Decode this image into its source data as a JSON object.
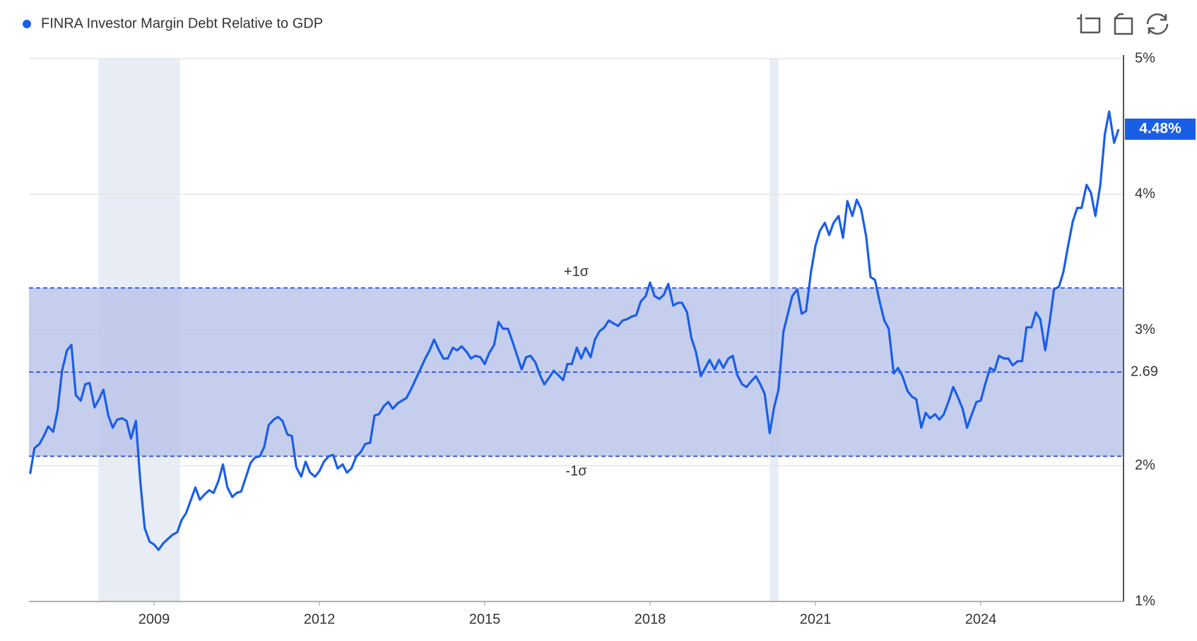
{
  "chart_data": {
    "type": "line",
    "x": [
      2006.75,
      2006.83,
      2006.92,
      2007.0,
      2007.08,
      2007.17,
      2007.25,
      2007.33,
      2007.42,
      2007.5,
      2007.58,
      2007.67,
      2007.75,
      2007.83,
      2007.92,
      2008.0,
      2008.08,
      2008.17,
      2008.25,
      2008.33,
      2008.42,
      2008.5,
      2008.58,
      2008.67,
      2008.75,
      2008.83,
      2008.92,
      2009.0,
      2009.08,
      2009.17,
      2009.25,
      2009.33,
      2009.42,
      2009.5,
      2009.58,
      2009.67,
      2009.75,
      2009.83,
      2009.92,
      2010.0,
      2010.08,
      2010.17,
      2010.25,
      2010.33,
      2010.42,
      2010.5,
      2010.58,
      2010.67,
      2010.75,
      2010.83,
      2010.92,
      2011.0,
      2011.08,
      2011.17,
      2011.25,
      2011.33,
      2011.42,
      2011.5,
      2011.58,
      2011.67,
      2011.75,
      2011.83,
      2011.92,
      2012.0,
      2012.08,
      2012.17,
      2012.25,
      2012.33,
      2012.42,
      2012.5,
      2012.58,
      2012.67,
      2012.75,
      2012.83,
      2012.92,
      2013.0,
      2013.08,
      2013.17,
      2013.25,
      2013.33,
      2013.42,
      2013.5,
      2013.58,
      2013.67,
      2013.75,
      2013.83,
      2013.92,
      2014.0,
      2014.08,
      2014.17,
      2014.25,
      2014.33,
      2014.42,
      2014.5,
      2014.58,
      2014.67,
      2014.75,
      2014.83,
      2014.92,
      2015.0,
      2015.08,
      2015.17,
      2015.25,
      2015.33,
      2015.42,
      2015.5,
      2015.58,
      2015.67,
      2015.75,
      2015.83,
      2015.92,
      2016.0,
      2016.08,
      2016.17,
      2016.25,
      2016.33,
      2016.42,
      2016.5,
      2016.58,
      2016.67,
      2016.75,
      2016.83,
      2016.92,
      2017.0,
      2017.08,
      2017.17,
      2017.25,
      2017.33,
      2017.42,
      2017.5,
      2017.58,
      2017.67,
      2017.75,
      2017.83,
      2017.92,
      2018.0,
      2018.08,
      2018.17,
      2018.25,
      2018.33,
      2018.42,
      2018.5,
      2018.58,
      2018.67,
      2018.75,
      2018.83,
      2018.92,
      2019.0,
      2019.08,
      2019.17,
      2019.25,
      2019.33,
      2019.42,
      2019.5,
      2019.58,
      2019.67,
      2019.75,
      2019.83,
      2019.92,
      2020.0,
      2020.08,
      2020.17,
      2020.25,
      2020.33,
      2020.42,
      2020.5,
      2020.58,
      2020.67,
      2020.75,
      2020.83,
      2020.92,
      2021.0,
      2021.08,
      2021.17,
      2021.25,
      2021.33,
      2021.42,
      2021.5,
      2021.58,
      2021.67,
      2021.75,
      2021.83,
      2021.92,
      2022.0,
      2022.08,
      2022.17,
      2022.25,
      2022.33,
      2022.42,
      2022.5,
      2022.58,
      2022.67,
      2022.75,
      2022.83,
      2022.92,
      2023.0,
      2023.08,
      2023.17,
      2023.25,
      2023.33,
      2023.42,
      2023.5,
      2023.58,
      2023.67,
      2023.75,
      2023.83,
      2023.92,
      2024.0,
      2024.08,
      2024.17,
      2024.25,
      2024.33,
      2024.42,
      2024.5,
      2024.58,
      2024.67,
      2024.75,
      2024.83,
      2024.92,
      2025.0,
      2025.08,
      2025.17,
      2025.25,
      2025.33,
      2025.42,
      2025.5,
      2025.58,
      2025.67,
      2025.75,
      2025.83,
      2025.92,
      2026.0,
      2026.08,
      2026.17,
      2026.25,
      2026.33,
      2026.42,
      2026.5
    ],
    "series": [
      {
        "name": "FINRA Investor Margin Debt Relative to GDP",
        "color": "#1a5ee8",
        "values": [
          1.94,
          2.13,
          2.16,
          2.22,
          2.29,
          2.25,
          2.41,
          2.7,
          2.85,
          2.89,
          2.52,
          2.48,
          2.6,
          2.61,
          2.43,
          2.49,
          2.56,
          2.37,
          2.28,
          2.34,
          2.35,
          2.33,
          2.2,
          2.33,
          1.88,
          1.54,
          1.44,
          1.42,
          1.38,
          1.43,
          1.46,
          1.49,
          1.51,
          1.6,
          1.65,
          1.75,
          1.84,
          1.75,
          1.79,
          1.82,
          1.8,
          1.89,
          2.01,
          1.84,
          1.77,
          1.8,
          1.81,
          1.92,
          2.02,
          2.06,
          2.07,
          2.14,
          2.3,
          2.34,
          2.36,
          2.33,
          2.23,
          2.22,
          1.99,
          1.92,
          2.03,
          1.95,
          1.92,
          1.96,
          2.03,
          2.07,
          2.08,
          1.98,
          2.01,
          1.95,
          1.98,
          2.07,
          2.1,
          2.16,
          2.17,
          2.37,
          2.38,
          2.44,
          2.47,
          2.42,
          2.46,
          2.48,
          2.5,
          2.57,
          2.64,
          2.71,
          2.79,
          2.85,
          2.93,
          2.85,
          2.79,
          2.79,
          2.87,
          2.85,
          2.88,
          2.84,
          2.79,
          2.81,
          2.8,
          2.75,
          2.83,
          2.89,
          3.06,
          3.01,
          3.01,
          2.92,
          2.82,
          2.71,
          2.8,
          2.81,
          2.76,
          2.67,
          2.6,
          2.65,
          2.7,
          2.67,
          2.63,
          2.75,
          2.75,
          2.87,
          2.79,
          2.87,
          2.8,
          2.93,
          2.99,
          3.02,
          3.07,
          3.05,
          3.03,
          3.07,
          3.08,
          3.1,
          3.11,
          3.21,
          3.25,
          3.35,
          3.25,
          3.23,
          3.26,
          3.34,
          3.18,
          3.2,
          3.2,
          3.13,
          2.94,
          2.84,
          2.66,
          2.72,
          2.78,
          2.71,
          2.78,
          2.72,
          2.79,
          2.81,
          2.67,
          2.6,
          2.58,
          2.62,
          2.66,
          2.6,
          2.53,
          2.24,
          2.43,
          2.56,
          2.99,
          3.12,
          3.25,
          3.3,
          3.12,
          3.14,
          3.43,
          3.62,
          3.73,
          3.79,
          3.7,
          3.79,
          3.84,
          3.68,
          3.95,
          3.84,
          3.96,
          3.89,
          3.69,
          3.39,
          3.37,
          3.2,
          3.07,
          3.01,
          2.68,
          2.72,
          2.66,
          2.55,
          2.51,
          2.49,
          2.28,
          2.39,
          2.35,
          2.38,
          2.34,
          2.38,
          2.48,
          2.58,
          2.51,
          2.42,
          2.28,
          2.37,
          2.47,
          2.48,
          2.6,
          2.72,
          2.7,
          2.81,
          2.79,
          2.79,
          2.74,
          2.77,
          2.77,
          3.02,
          3.02,
          3.13,
          3.08,
          2.85,
          3.06,
          3.3,
          3.32,
          3.43,
          3.61,
          3.8,
          3.9,
          3.9,
          4.07,
          4.01,
          3.84,
          4.07,
          4.44,
          4.61,
          4.38,
          4.48
        ]
      }
    ],
    "last_label": "4.48%",
    "xlim": [
      2006.73,
      2026.59
    ],
    "xticks": [
      2009,
      2012,
      2015,
      2018,
      2021,
      2024
    ],
    "ylim": [
      1,
      5
    ],
    "yticks": [
      {
        "value": 1,
        "label": "1%"
      },
      {
        "value": 2,
        "label": "2%"
      },
      {
        "value": 3,
        "label": "3%"
      },
      {
        "value": 4,
        "label": "4%"
      },
      {
        "value": 5,
        "label": "5%"
      }
    ],
    "grid": true,
    "band": {
      "upper": 3.31,
      "upper_label": "+1σ",
      "lower": 2.07,
      "lower_label": "-1σ",
      "mean": {
        "value": 2.69,
        "label": "2.69"
      },
      "color": "#bcc6ea"
    },
    "shaded_ranges": [
      [
        2007.99,
        2009.47
      ],
      [
        2020.17,
        2020.33
      ]
    ],
    "shade_color": "#e8ecf4"
  }
}
